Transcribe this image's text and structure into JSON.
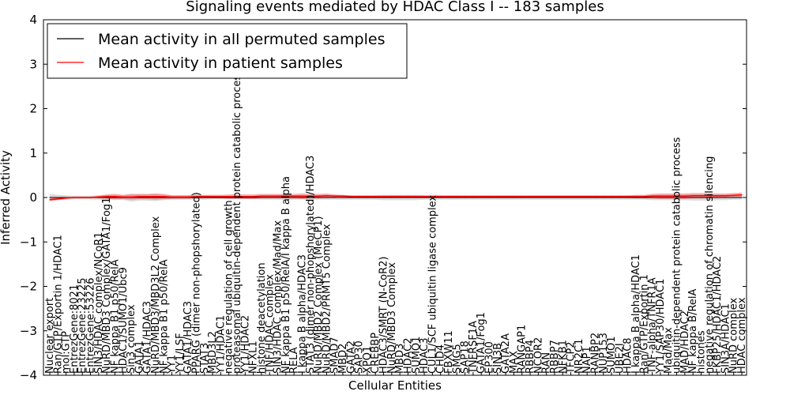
{
  "chart_data": {
    "type": "line",
    "title": "Signaling events mediated by HDAC Class I -- 183 samples",
    "xlabel": "Cellular Entities",
    "ylabel": "Inferred Activity",
    "ylim": [
      -4,
      4
    ],
    "yticks": [
      "−4",
      "−3",
      "−2",
      "−1",
      "0",
      "1",
      "2",
      "3",
      "4"
    ],
    "grid": false,
    "legend_position": "top-left",
    "categories": [
      "Nuclear export",
      "Ran/GTP/Exportin 1/HDAC1",
      "mol:GTP",
      "EntrezGene:8021",
      "EntrezGene:23225",
      "EntrezGene:53226",
      "SIN3/HDAC complex/NCoR1",
      "NuRD/MBD3 Complex/GATA1/Fog1",
      "NF kappa B1 p50/RelA",
      "HDAC1/SUMO1/Ubc9",
      "Sin3 complex",
      "GATA1",
      "GATA1/HDAC3",
      "NuRD/MBD3/MBD3L2 Complex",
      "NF kappa B1 p50/RelA",
      "YY1",
      "YY1/LSF",
      "GATA1/HDAC3",
      "PPARG (dimer non-phopshorylated)",
      "STAT3",
      "MBD3L2",
      "YY1/HDAC1",
      "negative regulation of cell growth",
      "proteasomal ubiquitin-dependent protein catabolic process",
      "YY1/HDAC2",
      "NFXL1",
      "histone deacetylation",
      "TNF/HDAC complex",
      "SIN3/HDAC complex/Mad/Max",
      "NF kappa B1 p50/RelA/I kappa B alpha",
      "RELA",
      "I kappa B alpha/HDAC3",
      "STAT3 (dimer non-phopshorylated)/HDAC3",
      "NuRD/MBD2 Complex (MeCP1)",
      "NuRD/MBD2/PRMT5 Complex",
      "SMAD7",
      "MBD2",
      "GATA2",
      "SAP30",
      "XPO1",
      "CREBBP",
      "HDAC3/SMRT (N-CoR2)",
      "NuRD/MBD3 Complex",
      "MBD3",
      "HDAC2",
      "SUMO1",
      "HDAC3",
      "CUL1/SCF ubiquitin ligase complex",
      "CHD4",
      "FBXW11",
      "SMG5",
      "SAP18",
      "TNFRSF1A",
      "GATA1/Fog1",
      "EP300",
      "SIN3B",
      "GATA2A",
      "MAX",
      "RANGAP1",
      "RBBP4",
      "NCOR2",
      "RAN",
      "RBBP7",
      "NFKB1",
      "TFCP2",
      "NR2C1",
      "NAP1",
      "RANBP2",
      "NUP153",
      "SUMO1",
      "UBE2I",
      "HDAC8",
      "I kappa B alpha/HDAC1",
      "Ran/GTP/Exportin 1",
      "TNF-alpha/TNFR1A",
      "YY1/SAP30/HDAC1",
      "Mad/Max",
      "ubiquitin-dependent protein catabolic process",
      "MAD/HDAC2",
      "NF kappa B/RelA",
      "histones",
      "negative regulation of chromatin silencing",
      "FKBP25/HDAC1/HDAC2",
      "SIN3A/HDAC1",
      "NuRD complex",
      "HDAC complex"
    ],
    "series": [
      {
        "name": "Mean activity in all permuted samples",
        "color": "#000000",
        "values": [
          0,
          0,
          0,
          0,
          0,
          0,
          0,
          0,
          0,
          0,
          0,
          0,
          0,
          0,
          0,
          0,
          0,
          0,
          0,
          0,
          0,
          0,
          0,
          0,
          0,
          0,
          0,
          0,
          0,
          0,
          0,
          0,
          0,
          0,
          0,
          0,
          0,
          0,
          0,
          0,
          0,
          0,
          0,
          0,
          0,
          0,
          0,
          0,
          0,
          0,
          0,
          0,
          0,
          0,
          0,
          0,
          0,
          0,
          0,
          0,
          0,
          0,
          0,
          0,
          0,
          0,
          0,
          0,
          0,
          0,
          0,
          0,
          0,
          0,
          0,
          0,
          0,
          0,
          0,
          0,
          0,
          0,
          0,
          0,
          0,
          0
        ],
        "spread": [
          0.08,
          0.06,
          0.05,
          0.04,
          0.04,
          0.04,
          0.05,
          0.06,
          0.06,
          0.05,
          0.09,
          0.07,
          0.07,
          0.08,
          0.06,
          0.05,
          0.05,
          0.05,
          0.05,
          0.05,
          0.04,
          0.04,
          0.04,
          0.04,
          0.04,
          0.04,
          0.05,
          0.05,
          0.05,
          0.06,
          0.05,
          0.05,
          0.05,
          0.05,
          0.05,
          0.05,
          0.05,
          0.05,
          0.05,
          0.05,
          0.05,
          0.06,
          0.06,
          0.06,
          0.06,
          0.06,
          0.05,
          0.05,
          0.05,
          0.05,
          0.05,
          0.05,
          0.05,
          0.05,
          0.05,
          0.05,
          0.05,
          0.05,
          0.05,
          0.05,
          0.05,
          0.05,
          0.05,
          0.05,
          0.05,
          0.05,
          0.05,
          0.05,
          0.05,
          0.05,
          0.05,
          0.05,
          0.05,
          0.05,
          0.06,
          0.06,
          0.06,
          0.06,
          0.06,
          0.07,
          0.07,
          0.07,
          0.06,
          0.06,
          0.05,
          0.05
        ]
      },
      {
        "name": "Mean activity in patient samples",
        "color": "#ff0000",
        "values": [
          -0.05,
          -0.03,
          -0.01,
          0,
          0,
          0,
          0.01,
          0.02,
          0.02,
          0.01,
          0.01,
          0.02,
          0.02,
          0.02,
          0.02,
          0.01,
          0.01,
          0.01,
          0.02,
          0.02,
          0.02,
          0.02,
          0.02,
          0.02,
          0.02,
          0.02,
          0.03,
          0.03,
          0.03,
          0.03,
          0.03,
          0.03,
          0.03,
          0.03,
          0.04,
          0.03,
          0.03,
          0.02,
          0.02,
          0.02,
          0.02,
          0.02,
          0.02,
          0.02,
          0.02,
          0.02,
          0.02,
          0.02,
          0.02,
          0.02,
          0.02,
          0.02,
          0.02,
          0.02,
          0.02,
          0.02,
          0.02,
          0.02,
          0.02,
          0.02,
          0.02,
          0.02,
          0.02,
          0.02,
          0.02,
          0.02,
          0.02,
          0.02,
          0.02,
          0.02,
          0.02,
          0.02,
          0.02,
          0.02,
          0.03,
          0.03,
          0.03,
          0.03,
          0.03,
          0.04,
          0.04,
          0.04,
          0.04,
          0.04,
          0.05,
          0.06
        ],
        "spread": [
          0.03,
          0.03,
          0.02,
          0.02,
          0.02,
          0.02,
          0.03,
          0.05,
          0.06,
          0.05,
          0.06,
          0.06,
          0.06,
          0.07,
          0.06,
          0.04,
          0.04,
          0.04,
          0.04,
          0.04,
          0.04,
          0.04,
          0.05,
          0.05,
          0.05,
          0.05,
          0.05,
          0.05,
          0.05,
          0.05,
          0.05,
          0.06,
          0.05,
          0.05,
          0.05,
          0.04,
          0.03,
          0.03,
          0.03,
          0.03,
          0.03,
          0.03,
          0.03,
          0.03,
          0.03,
          0.03,
          0.03,
          0.03,
          0.03,
          0.03,
          0.03,
          0.03,
          0.03,
          0.03,
          0.03,
          0.03,
          0.03,
          0.03,
          0.03,
          0.03,
          0.03,
          0.03,
          0.03,
          0.03,
          0.03,
          0.03,
          0.03,
          0.03,
          0.03,
          0.03,
          0.03,
          0.03,
          0.04,
          0.04,
          0.05,
          0.06,
          0.06,
          0.06,
          0.06,
          0.06,
          0.06,
          0.06,
          0.05,
          0.05,
          0.05,
          0.05
        ]
      }
    ]
  }
}
